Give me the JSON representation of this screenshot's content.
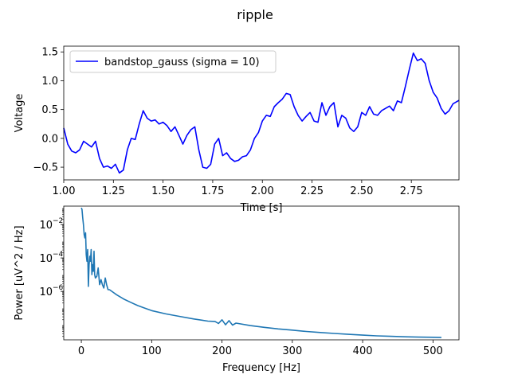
{
  "figure": {
    "title": "ripple"
  },
  "chart_data": [
    {
      "type": "line",
      "xlabel": "Time [s]",
      "ylabel": "Voltage",
      "xlim": [
        1.0,
        2.99
      ],
      "ylim": [
        -0.72,
        1.6
      ],
      "xticks": [
        "1.00",
        "1.25",
        "1.50",
        "1.75",
        "2.00",
        "2.25",
        "2.50",
        "2.75"
      ],
      "yticks": [
        "−0.5",
        "0.0",
        "0.5",
        "1.0",
        "1.5"
      ],
      "legend": "top-left",
      "grid": false,
      "series": [
        {
          "name": "bandstop_gauss (sigma = 10)",
          "color": "#0000ff",
          "x": [
            1.0,
            1.02,
            1.04,
            1.06,
            1.08,
            1.1,
            1.12,
            1.14,
            1.16,
            1.18,
            1.2,
            1.22,
            1.24,
            1.26,
            1.28,
            1.3,
            1.32,
            1.34,
            1.36,
            1.38,
            1.4,
            1.42,
            1.44,
            1.46,
            1.48,
            1.5,
            1.52,
            1.54,
            1.56,
            1.58,
            1.6,
            1.62,
            1.64,
            1.66,
            1.68,
            1.7,
            1.72,
            1.74,
            1.76,
            1.78,
            1.8,
            1.82,
            1.84,
            1.86,
            1.88,
            1.9,
            1.92,
            1.94,
            1.96,
            1.98,
            2.0,
            2.02,
            2.04,
            2.06,
            2.08,
            2.1,
            2.12,
            2.14,
            2.16,
            2.18,
            2.2,
            2.22,
            2.24,
            2.26,
            2.28,
            2.3,
            2.32,
            2.34,
            2.36,
            2.38,
            2.4,
            2.42,
            2.44,
            2.46,
            2.48,
            2.5,
            2.52,
            2.54,
            2.56,
            2.58,
            2.6,
            2.62,
            2.64,
            2.66,
            2.68,
            2.7,
            2.72,
            2.74,
            2.76,
            2.78,
            2.8,
            2.82,
            2.84,
            2.86,
            2.88,
            2.9,
            2.92,
            2.94,
            2.96,
            2.99
          ],
          "y": [
            0.18,
            -0.1,
            -0.22,
            -0.25,
            -0.2,
            -0.05,
            -0.1,
            -0.15,
            -0.05,
            -0.35,
            -0.5,
            -0.48,
            -0.52,
            -0.45,
            -0.6,
            -0.55,
            -0.2,
            0.0,
            -0.02,
            0.25,
            0.48,
            0.35,
            0.3,
            0.32,
            0.25,
            0.28,
            0.22,
            0.12,
            0.2,
            0.05,
            -0.1,
            0.05,
            0.15,
            0.2,
            -0.2,
            -0.5,
            -0.52,
            -0.45,
            -0.1,
            0.0,
            -0.3,
            -0.25,
            -0.35,
            -0.4,
            -0.38,
            -0.32,
            -0.3,
            -0.2,
            0.0,
            0.1,
            0.3,
            0.4,
            0.38,
            0.55,
            0.62,
            0.68,
            0.78,
            0.76,
            0.55,
            0.4,
            0.3,
            0.38,
            0.45,
            0.3,
            0.28,
            0.62,
            0.4,
            0.55,
            0.62,
            0.2,
            0.4,
            0.35,
            0.18,
            0.12,
            0.2,
            0.45,
            0.4,
            0.55,
            0.42,
            0.4,
            0.48,
            0.52,
            0.56,
            0.48,
            0.65,
            0.62,
            0.9,
            1.2,
            1.48,
            1.35,
            1.38,
            1.3,
            1.0,
            0.8,
            0.7,
            0.52,
            0.42,
            0.48,
            0.6,
            0.66
          ]
        }
      ]
    },
    {
      "type": "line",
      "xlabel": "Frequency [Hz]",
      "ylabel": "Power [uV^2 / Hz]",
      "xlim": [
        -25,
        537
      ],
      "ylim_log10": [
        -8.9,
        -0.9
      ],
      "scale": "log",
      "xticks": [
        "0",
        "100",
        "200",
        "300",
        "400",
        "500"
      ],
      "yticks": [
        "10",
        "10",
        "10"
      ],
      "ytick_exponents": [
        "−2",
        "−4",
        "−6"
      ],
      "grid": false,
      "series": [
        {
          "color": "#1f77b4",
          "x": [
            0,
            1,
            2,
            3,
            4,
            5,
            6,
            7,
            8,
            9,
            10,
            11,
            12,
            13,
            14,
            15,
            16,
            17,
            18,
            19,
            20,
            22,
            24,
            26,
            28,
            30,
            32,
            34,
            36,
            38,
            40,
            45,
            50,
            60,
            70,
            80,
            90,
            100,
            120,
            140,
            160,
            180,
            190,
            195,
            200,
            205,
            210,
            215,
            220,
            240,
            260,
            280,
            300,
            320,
            340,
            360,
            380,
            400,
            420,
            440,
            460,
            480,
            500,
            512
          ],
          "y_log10": [
            -1.0,
            -1.1,
            -1.6,
            -2.0,
            -2.6,
            -2.8,
            -2.5,
            -3.8,
            -4.2,
            -3.5,
            -5.7,
            -4.4,
            -3.9,
            -4.2,
            -3.5,
            -5.0,
            -4.4,
            -4.8,
            -3.6,
            -5.0,
            -5.2,
            -5.1,
            -4.6,
            -5.6,
            -5.3,
            -5.6,
            -5.8,
            -5.2,
            -5.6,
            -5.9,
            -5.9,
            -6.05,
            -6.2,
            -6.45,
            -6.65,
            -6.85,
            -7.0,
            -7.15,
            -7.35,
            -7.5,
            -7.65,
            -7.78,
            -7.8,
            -7.92,
            -7.7,
            -8.0,
            -7.75,
            -8.02,
            -7.9,
            -8.05,
            -8.15,
            -8.25,
            -8.32,
            -8.4,
            -8.46,
            -8.52,
            -8.57,
            -8.62,
            -8.66,
            -8.69,
            -8.72,
            -8.74,
            -8.75,
            -8.76
          ]
        }
      ]
    }
  ]
}
